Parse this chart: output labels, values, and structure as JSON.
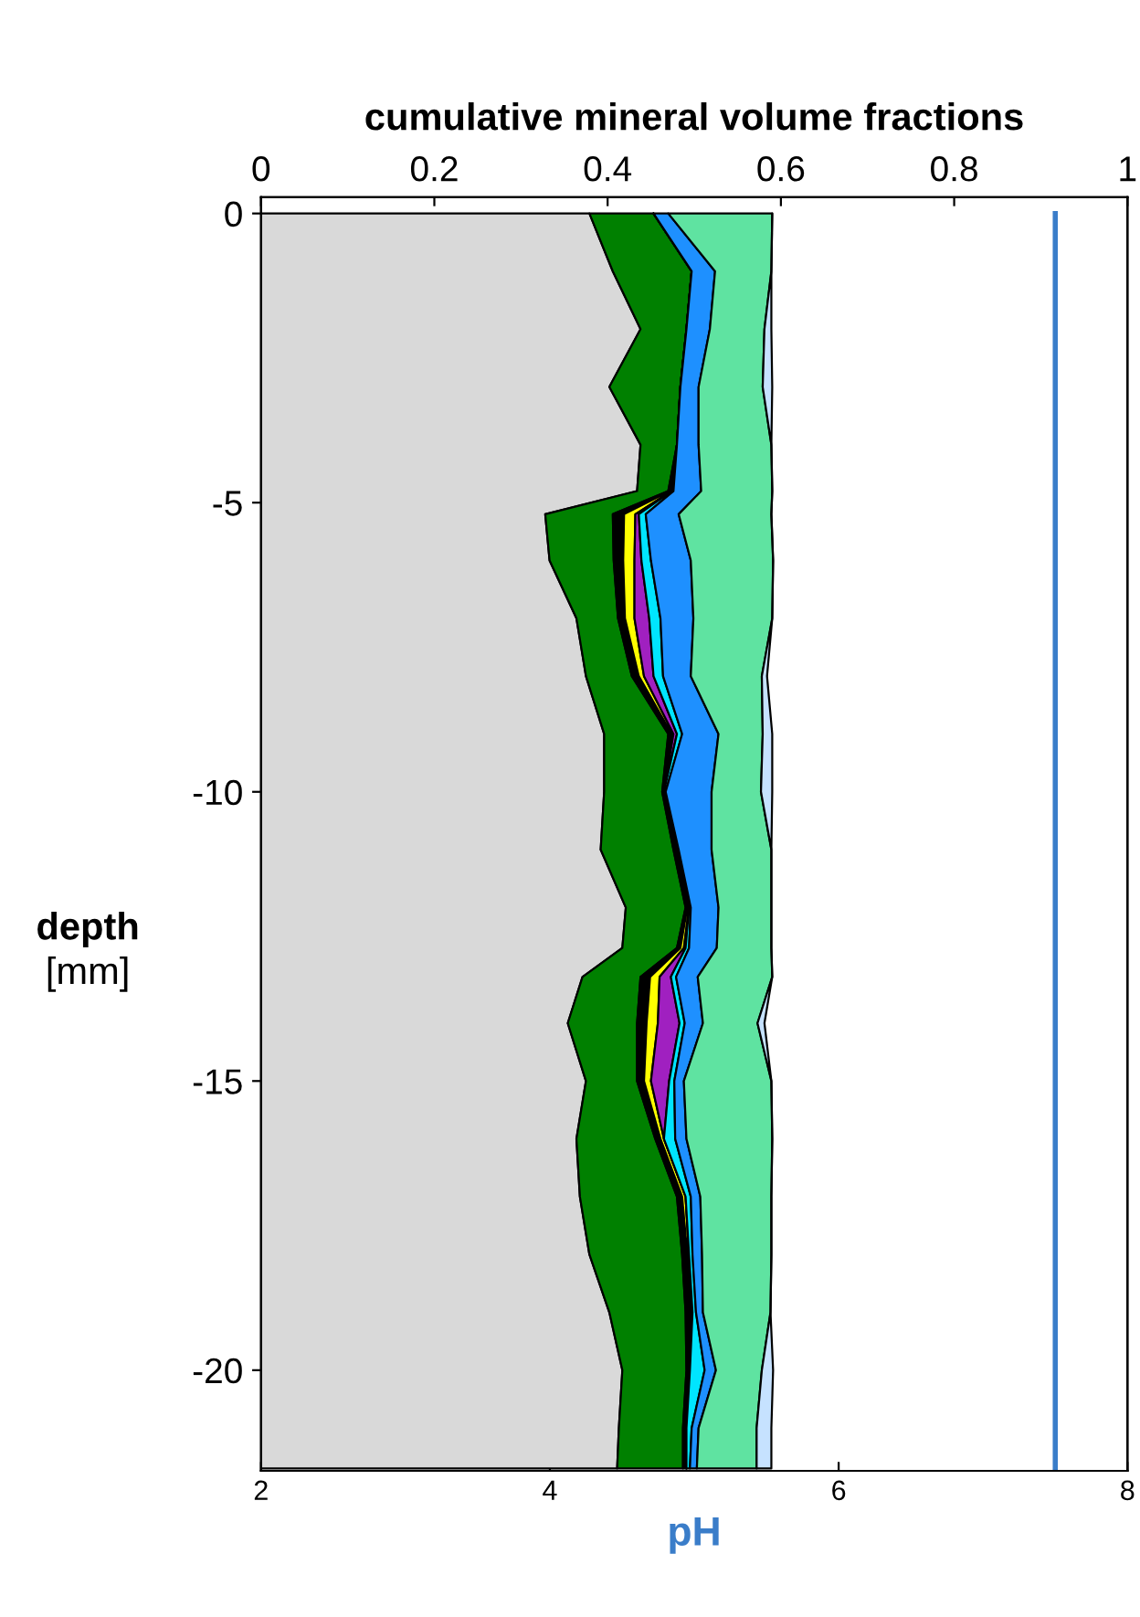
{
  "chart_data": {
    "type": "area",
    "stacked": true,
    "orientation": "horizontal",
    "x": [
      0,
      -1,
      -2,
      -3,
      -4,
      -4.8,
      -5.2,
      -6,
      -7,
      -8,
      -9,
      -10,
      -11,
      -12,
      -12.7,
      -13.2,
      -14,
      -15,
      -16,
      -17,
      -18,
      -19,
      -20,
      -21,
      -21.7
    ],
    "series": [
      {
        "color": "#d9d9d9",
        "axis": "x2",
        "values": [
          0.379,
          0.406,
          0.438,
          0.402,
          0.438,
          0.434,
          0.328,
          0.333,
          0.364,
          0.375,
          0.396,
          0.396,
          0.392,
          0.421,
          0.417,
          0.371,
          0.354,
          0.375,
          0.364,
          0.368,
          0.379,
          0.402,
          0.417,
          0.413,
          0.411
        ]
      },
      {
        "color": "#008000",
        "axis": "x2",
        "values": [
          0.074,
          0.091,
          0.053,
          0.082,
          0.042,
          0.036,
          0.078,
          0.074,
          0.048,
          0.053,
          0.074,
          0.067,
          0.084,
          0.069,
          0.063,
          0.067,
          0.08,
          0.059,
          0.091,
          0.112,
          0.107,
          0.088,
          0.074,
          0.074,
          0.076
        ]
      },
      {
        "color": "#000000",
        "axis": "x2",
        "values": [
          0,
          0,
          0,
          0,
          0,
          0.002,
          0.013,
          0.011,
          0.008,
          0.008,
          0.004,
          0.002,
          0.002,
          0.002,
          0.004,
          0.011,
          0.011,
          0.008,
          0.006,
          0.006,
          0.006,
          0.006,
          0.004,
          0.004,
          0.004
        ]
      },
      {
        "color": "#ffff00",
        "axis": "x2",
        "values": [
          0,
          0,
          0,
          0,
          0,
          0.002,
          0.013,
          0.013,
          0.011,
          0.006,
          0.002,
          0,
          0.002,
          0.002,
          0.004,
          0.011,
          0.013,
          0.008,
          0.004,
          0.004,
          0.002,
          0.002,
          0,
          0,
          0
        ]
      },
      {
        "color": "#a020c0",
        "axis": "x2",
        "values": [
          0,
          0,
          0,
          0,
          0,
          0,
          0.004,
          0.008,
          0.017,
          0.011,
          0.004,
          0,
          0,
          0,
          0.002,
          0.013,
          0.025,
          0.021,
          0,
          0,
          0,
          0,
          0,
          0,
          0
        ]
      },
      {
        "color": "#00e5ff",
        "axis": "x2",
        "values": [
          0,
          0,
          0,
          0,
          0,
          0.002,
          0.008,
          0.011,
          0.013,
          0.011,
          0.006,
          0.002,
          0.002,
          0.002,
          0.004,
          0.006,
          0.006,
          0.006,
          0.013,
          0.006,
          0.004,
          0.004,
          0.017,
          0.006,
          0.004
        ]
      },
      {
        "color": "#1e90ff",
        "axis": "x2",
        "values": [
          0.017,
          0.027,
          0.027,
          0.021,
          0.025,
          0.032,
          0.038,
          0.046,
          0.038,
          0.032,
          0.042,
          0.053,
          0.038,
          0.032,
          0.032,
          0.025,
          0.021,
          0.011,
          0.013,
          0.011,
          0.011,
          0.008,
          0.013,
          0.008,
          0.008
        ]
      },
      {
        "color": "#5fe3a1",
        "axis": "x2",
        "values": [
          0.12,
          0.065,
          0.063,
          0.074,
          0.084,
          0.082,
          0.107,
          0.095,
          0.091,
          0.082,
          0.051,
          0.057,
          0.069,
          0.061,
          0.063,
          0.086,
          0.063,
          0.101,
          0.099,
          0.082,
          0.08,
          0.078,
          0.053,
          0.067,
          0.069
        ]
      },
      {
        "color": "#c6e2ff",
        "axis": "x2",
        "values": [
          0,
          0,
          0.008,
          0.011,
          0,
          0,
          0,
          0,
          0,
          0.006,
          0.011,
          0.013,
          0,
          0,
          0,
          0,
          0.008,
          0,
          0,
          0,
          0,
          0,
          0.013,
          0.017,
          0.017
        ]
      },
      {
        "type": "line",
        "color": "#3a7dc9",
        "x": [
          0,
          -21.7
        ],
        "values": [
          7.5,
          7.5
        ]
      }
    ],
    "x2label": "cumulative mineral volume fractions",
    "x2lim": [
      0,
      1
    ],
    "x2ticks": [
      0,
      0.2,
      0.4,
      0.6,
      0.8,
      1
    ],
    "xlabel": "pH",
    "xlim": [
      2,
      8
    ],
    "xticks": [
      2,
      4,
      6,
      8
    ],
    "ylabel": "depth\n[mm]",
    "ylim": [
      -21.74,
      0.28
    ],
    "yticks": [
      0,
      -5,
      -10,
      -15,
      -20
    ],
    "grid": false,
    "legend": false
  }
}
